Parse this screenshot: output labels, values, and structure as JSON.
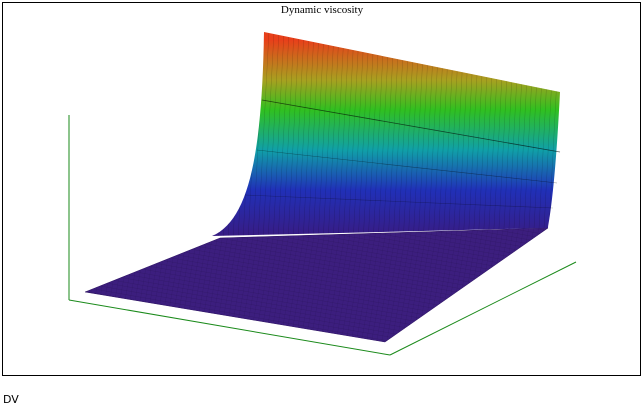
{
  "title": "Dynamic viscosity",
  "caption": "DV"
}
